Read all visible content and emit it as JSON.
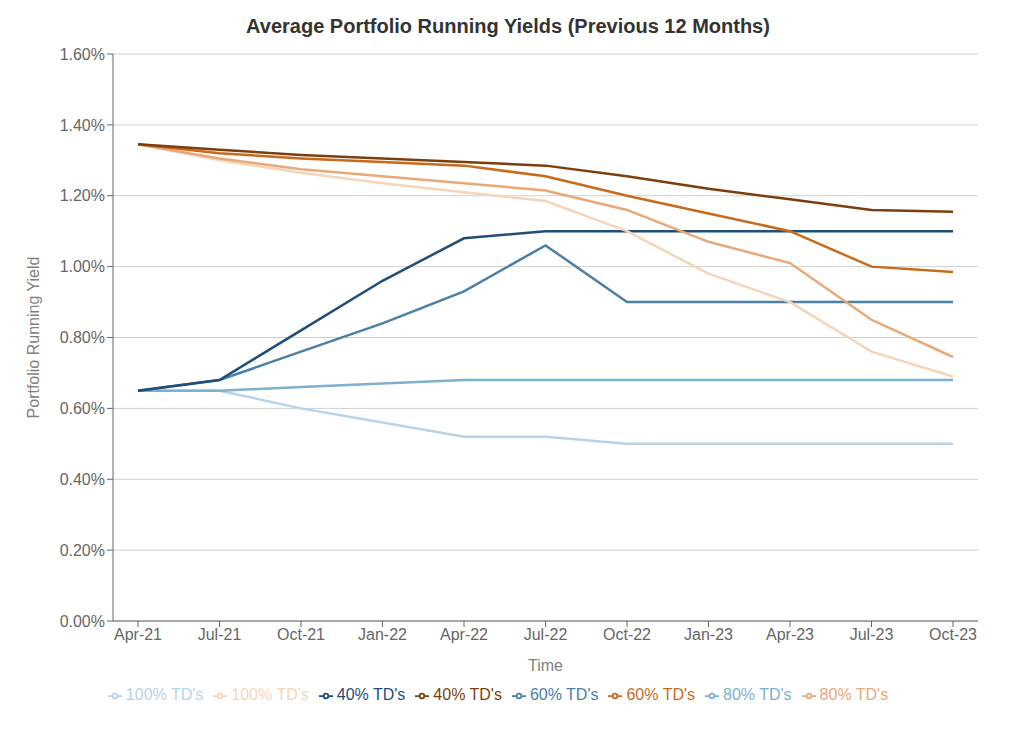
{
  "chart_data": {
    "type": "line",
    "title": "Average Portfolio Running Yields (Previous 12 Months)",
    "x_label": "Time",
    "y_label": "Portfolio Running Yield",
    "categories": [
      "Apr-21",
      "Jul-21",
      "Oct-21",
      "Jan-22",
      "Apr-22",
      "Jul-22",
      "Oct-22",
      "Jan-23",
      "Apr-23",
      "Jul-23",
      "Oct-23"
    ],
    "series": [
      {
        "name": "100% TD's",
        "color": "#b8d3e8",
        "values": [
          0.0065,
          0.0065,
          0.006,
          0.0056,
          0.0052,
          0.0052,
          0.005,
          0.005,
          0.005,
          0.005,
          0.005
        ]
      },
      {
        "name": "80% TD's",
        "color": "#7dafd0",
        "values": [
          0.0065,
          0.0065,
          0.0066,
          0.0067,
          0.0068,
          0.0068,
          0.0068,
          0.0068,
          0.0068,
          0.0068,
          0.0068
        ]
      },
      {
        "name": "60% TD's",
        "color": "#4a7fa8",
        "values": [
          0.0065,
          0.0068,
          0.0076,
          0.0084,
          0.0093,
          0.0106,
          0.009,
          0.009,
          0.009,
          0.009,
          0.009
        ]
      },
      {
        "name": "40% TD's",
        "color": "#1f4e79",
        "values": [
          0.0065,
          0.0068,
          0.0082,
          0.0096,
          0.0108,
          0.011,
          0.011,
          0.011,
          0.011,
          0.011,
          0.011
        ]
      },
      {
        "name": "100% TD's",
        "color": "#f5d5b8",
        "values": [
          0.01345,
          0.013,
          0.01265,
          0.01235,
          0.0121,
          0.01185,
          0.011,
          0.0098,
          0.009,
          0.0076,
          0.0069
        ]
      },
      {
        "name": "80% TD's",
        "color": "#e8a878",
        "values": [
          0.01345,
          0.01305,
          0.01275,
          0.01255,
          0.01235,
          0.01215,
          0.0116,
          0.0107,
          0.0101,
          0.0085,
          0.00745
        ]
      },
      {
        "name": "60% TD's",
        "color": "#c96a1a",
        "values": [
          0.01345,
          0.0132,
          0.01305,
          0.01295,
          0.01285,
          0.01255,
          0.012,
          0.0115,
          0.011,
          0.01,
          0.00985
        ]
      },
      {
        "name": "40% TD's",
        "color": "#7b3f0e",
        "values": [
          0.01345,
          0.0133,
          0.01315,
          0.01305,
          0.01295,
          0.01285,
          0.01255,
          0.0122,
          0.0119,
          0.0116,
          0.01155
        ]
      }
    ],
    "ylim": [
      0.0,
      0.016
    ],
    "yticks": [
      {
        "value": 0.0,
        "label": "0.00%"
      },
      {
        "value": 0.002,
        "label": "0.20%"
      },
      {
        "value": 0.004,
        "label": "0.40%"
      },
      {
        "value": 0.006,
        "label": "0.60%"
      },
      {
        "value": 0.008,
        "label": "0.80%"
      },
      {
        "value": 0.01,
        "label": "1.00%"
      },
      {
        "value": 0.012,
        "label": "1.20%"
      },
      {
        "value": 0.014,
        "label": "1.40%"
      },
      {
        "value": 0.016,
        "label": "1.60%"
      }
    ],
    "grid": true,
    "legend": "bottom"
  }
}
